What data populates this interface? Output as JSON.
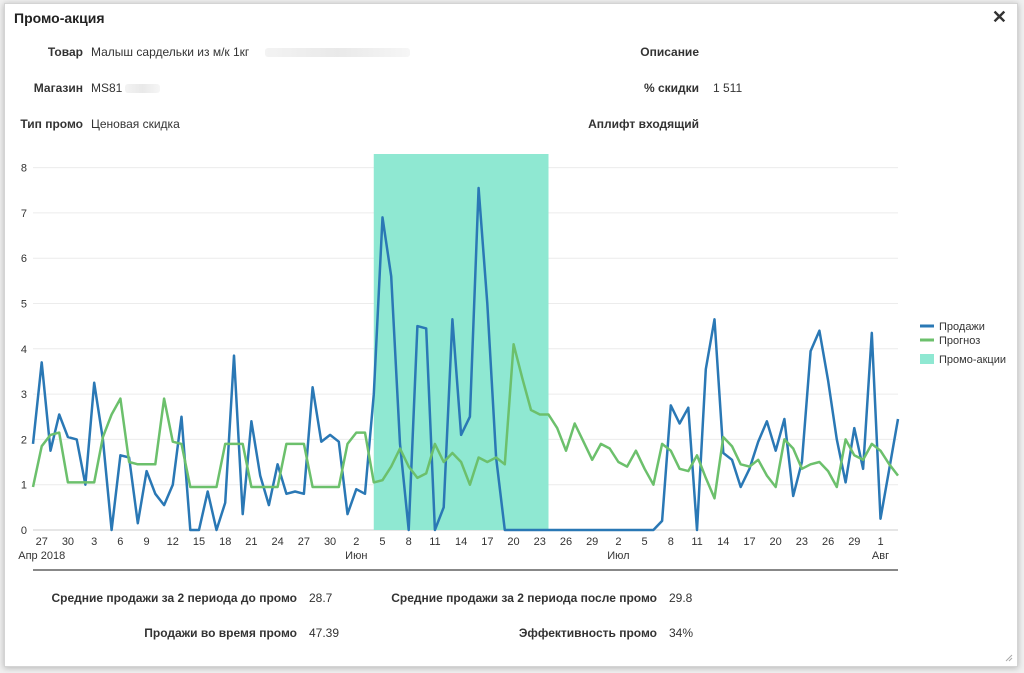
{
  "dialog": {
    "title": "Промо-акция",
    "close_icon": "close-icon"
  },
  "fields": {
    "product_label": "Товар",
    "product_value": "Малыш сардельки из м/к 1кг",
    "store_label": "Магазин",
    "store_value": "MS81",
    "promo_type_label": "Тип промо",
    "promo_type_value": "Ценовая скидка",
    "description_label": "Описание",
    "discount_label": "% скидки",
    "discount_value": "1 511",
    "uplift_label": "Аплифт входящий"
  },
  "summary": {
    "avg_before_label": "Средние продажи за 2 периода до промо",
    "avg_before_value": "28.7",
    "avg_after_label": "Средние продажи за 2 периода после промо",
    "avg_after_value": "29.8",
    "during_label": "Продажи во время промо",
    "during_value": "47.39",
    "efficiency_label": "Эффективность промо",
    "efficiency_value": "34%"
  },
  "colors": {
    "sales": "#2a78b5",
    "forecast": "#6cc06c",
    "promo": "#8fe8d2"
  },
  "chart_data": {
    "type": "line",
    "ylim": [
      0,
      8.3
    ],
    "yticks": [
      0,
      1,
      2,
      3,
      4,
      5,
      6,
      7,
      8
    ],
    "x_start": "2018-04-26",
    "x_end": "2018-08-03",
    "xticks": [
      {
        "date": "2018-04-27",
        "label": "27",
        "sub": "Апр 2018"
      },
      {
        "date": "2018-04-30",
        "label": "30"
      },
      {
        "date": "2018-05-03",
        "label": "3"
      },
      {
        "date": "2018-05-06",
        "label": "6"
      },
      {
        "date": "2018-05-09",
        "label": "9"
      },
      {
        "date": "2018-05-12",
        "label": "12"
      },
      {
        "date": "2018-05-15",
        "label": "15"
      },
      {
        "date": "2018-05-18",
        "label": "18"
      },
      {
        "date": "2018-05-21",
        "label": "21"
      },
      {
        "date": "2018-05-24",
        "label": "24"
      },
      {
        "date": "2018-05-27",
        "label": "27"
      },
      {
        "date": "2018-05-30",
        "label": "30"
      },
      {
        "date": "2018-06-02",
        "label": "2",
        "sub": "Июн"
      },
      {
        "date": "2018-06-05",
        "label": "5"
      },
      {
        "date": "2018-06-08",
        "label": "8"
      },
      {
        "date": "2018-06-11",
        "label": "11"
      },
      {
        "date": "2018-06-14",
        "label": "14"
      },
      {
        "date": "2018-06-17",
        "label": "17"
      },
      {
        "date": "2018-06-20",
        "label": "20"
      },
      {
        "date": "2018-06-23",
        "label": "23"
      },
      {
        "date": "2018-06-26",
        "label": "26"
      },
      {
        "date": "2018-06-29",
        "label": "29"
      },
      {
        "date": "2018-07-02",
        "label": "2",
        "sub": "Июл"
      },
      {
        "date": "2018-07-05",
        "label": "5"
      },
      {
        "date": "2018-07-08",
        "label": "8"
      },
      {
        "date": "2018-07-11",
        "label": "11"
      },
      {
        "date": "2018-07-14",
        "label": "14"
      },
      {
        "date": "2018-07-17",
        "label": "17"
      },
      {
        "date": "2018-07-20",
        "label": "20"
      },
      {
        "date": "2018-07-23",
        "label": "23"
      },
      {
        "date": "2018-07-26",
        "label": "26"
      },
      {
        "date": "2018-07-29",
        "label": "29"
      },
      {
        "date": "2018-08-01",
        "label": "1",
        "sub": "Авг"
      }
    ],
    "promo_period": [
      "2018-06-04",
      "2018-06-24"
    ],
    "legend": {
      "placement": "right"
    },
    "series": [
      {
        "name": "Продажи",
        "color": "#2a78b5",
        "points": [
          [
            "2018-04-26",
            1.9
          ],
          [
            "2018-04-27",
            3.7
          ],
          [
            "2018-04-28",
            1.75
          ],
          [
            "2018-04-29",
            2.55
          ],
          [
            "2018-04-30",
            2.05
          ],
          [
            "2018-05-01",
            2.0
          ],
          [
            "2018-05-02",
            1.0
          ],
          [
            "2018-05-03",
            3.25
          ],
          [
            "2018-05-04",
            2.0
          ],
          [
            "2018-05-05",
            0.0
          ],
          [
            "2018-05-06",
            1.65
          ],
          [
            "2018-05-07",
            1.6
          ],
          [
            "2018-05-08",
            0.15
          ],
          [
            "2018-05-09",
            1.3
          ],
          [
            "2018-05-10",
            0.8
          ],
          [
            "2018-05-11",
            0.55
          ],
          [
            "2018-05-12",
            1.0
          ],
          [
            "2018-05-13",
            2.5
          ],
          [
            "2018-05-14",
            0.0
          ],
          [
            "2018-05-15",
            0.0
          ],
          [
            "2018-05-16",
            0.85
          ],
          [
            "2018-05-17",
            0.0
          ],
          [
            "2018-05-18",
            0.6
          ],
          [
            "2018-05-19",
            3.85
          ],
          [
            "2018-05-20",
            0.35
          ],
          [
            "2018-05-21",
            2.4
          ],
          [
            "2018-05-22",
            1.2
          ],
          [
            "2018-05-23",
            0.55
          ],
          [
            "2018-05-24",
            1.45
          ],
          [
            "2018-05-25",
            0.8
          ],
          [
            "2018-05-26",
            0.85
          ],
          [
            "2018-05-27",
            0.8
          ],
          [
            "2018-05-28",
            3.15
          ],
          [
            "2018-05-29",
            1.95
          ],
          [
            "2018-05-30",
            2.1
          ],
          [
            "2018-05-31",
            1.95
          ],
          [
            "2018-06-01",
            0.35
          ],
          [
            "2018-06-02",
            0.9
          ],
          [
            "2018-06-03",
            0.8
          ],
          [
            "2018-06-04",
            3.0
          ],
          [
            "2018-06-05",
            6.9
          ],
          [
            "2018-06-06",
            5.6
          ],
          [
            "2018-06-07",
            1.9
          ],
          [
            "2018-06-08",
            0.0
          ],
          [
            "2018-06-09",
            4.5
          ],
          [
            "2018-06-10",
            4.45
          ],
          [
            "2018-06-11",
            0.0
          ],
          [
            "2018-06-12",
            0.5
          ],
          [
            "2018-06-13",
            4.65
          ],
          [
            "2018-06-14",
            2.1
          ],
          [
            "2018-06-15",
            2.5
          ],
          [
            "2018-06-16",
            7.55
          ],
          [
            "2018-06-17",
            5.0
          ],
          [
            "2018-06-18",
            1.6
          ],
          [
            "2018-06-19",
            0.0
          ],
          [
            "2018-06-20",
            0.0
          ],
          [
            "2018-06-21",
            0.0
          ],
          [
            "2018-06-22",
            0.0
          ],
          [
            "2018-06-23",
            0.0
          ],
          [
            "2018-06-24",
            0.0
          ],
          [
            "2018-06-25",
            0.0
          ],
          [
            "2018-06-26",
            0.0
          ],
          [
            "2018-06-27",
            0.0
          ],
          [
            "2018-06-28",
            0.0
          ],
          [
            "2018-06-29",
            0.0
          ],
          [
            "2018-06-30",
            0.0
          ],
          [
            "2018-07-01",
            0.0
          ],
          [
            "2018-07-02",
            0.0
          ],
          [
            "2018-07-03",
            0.0
          ],
          [
            "2018-07-04",
            0.0
          ],
          [
            "2018-07-05",
            0.0
          ],
          [
            "2018-07-06",
            0.0
          ],
          [
            "2018-07-07",
            0.2
          ],
          [
            "2018-07-08",
            2.75
          ],
          [
            "2018-07-09",
            2.35
          ],
          [
            "2018-07-10",
            2.7
          ],
          [
            "2018-07-11",
            0.0
          ],
          [
            "2018-07-12",
            3.55
          ],
          [
            "2018-07-13",
            4.65
          ],
          [
            "2018-07-14",
            1.7
          ],
          [
            "2018-07-15",
            1.55
          ],
          [
            "2018-07-16",
            0.95
          ],
          [
            "2018-07-17",
            1.35
          ],
          [
            "2018-07-18",
            1.95
          ],
          [
            "2018-07-19",
            2.4
          ],
          [
            "2018-07-20",
            1.75
          ],
          [
            "2018-07-21",
            2.45
          ],
          [
            "2018-07-22",
            0.75
          ],
          [
            "2018-07-23",
            1.5
          ],
          [
            "2018-07-24",
            3.95
          ],
          [
            "2018-07-25",
            4.4
          ],
          [
            "2018-07-26",
            3.3
          ],
          [
            "2018-07-27",
            2.0
          ],
          [
            "2018-07-28",
            1.05
          ],
          [
            "2018-07-29",
            2.25
          ],
          [
            "2018-07-30",
            1.35
          ],
          [
            "2018-07-31",
            4.35
          ],
          [
            "2018-08-01",
            0.25
          ],
          [
            "2018-08-02",
            1.35
          ],
          [
            "2018-08-03",
            2.45
          ]
        ]
      },
      {
        "name": "Прогноз",
        "color": "#6cc06c",
        "points": [
          [
            "2018-04-26",
            0.95
          ],
          [
            "2018-04-27",
            1.85
          ],
          [
            "2018-04-28",
            2.1
          ],
          [
            "2018-04-29",
            2.15
          ],
          [
            "2018-04-30",
            1.05
          ],
          [
            "2018-05-01",
            1.05
          ],
          [
            "2018-05-02",
            1.05
          ],
          [
            "2018-05-03",
            1.05
          ],
          [
            "2018-05-04",
            2.05
          ],
          [
            "2018-05-05",
            2.55
          ],
          [
            "2018-05-06",
            2.9
          ],
          [
            "2018-05-07",
            1.5
          ],
          [
            "2018-05-08",
            1.45
          ],
          [
            "2018-05-09",
            1.45
          ],
          [
            "2018-05-10",
            1.45
          ],
          [
            "2018-05-11",
            2.9
          ],
          [
            "2018-05-12",
            1.95
          ],
          [
            "2018-05-13",
            1.9
          ],
          [
            "2018-05-14",
            0.95
          ],
          [
            "2018-05-15",
            0.95
          ],
          [
            "2018-05-16",
            0.95
          ],
          [
            "2018-05-17",
            0.95
          ],
          [
            "2018-05-18",
            1.9
          ],
          [
            "2018-05-19",
            1.9
          ],
          [
            "2018-05-20",
            1.9
          ],
          [
            "2018-05-21",
            0.95
          ],
          [
            "2018-05-22",
            0.95
          ],
          [
            "2018-05-23",
            0.95
          ],
          [
            "2018-05-24",
            0.95
          ],
          [
            "2018-05-25",
            1.9
          ],
          [
            "2018-05-26",
            1.9
          ],
          [
            "2018-05-27",
            1.9
          ],
          [
            "2018-05-28",
            0.95
          ],
          [
            "2018-05-29",
            0.95
          ],
          [
            "2018-05-30",
            0.95
          ],
          [
            "2018-05-31",
            0.95
          ],
          [
            "2018-06-01",
            1.9
          ],
          [
            "2018-06-02",
            2.15
          ],
          [
            "2018-06-03",
            2.15
          ],
          [
            "2018-06-04",
            1.05
          ],
          [
            "2018-06-05",
            1.1
          ],
          [
            "2018-06-06",
            1.4
          ],
          [
            "2018-06-07",
            1.8
          ],
          [
            "2018-06-08",
            1.4
          ],
          [
            "2018-06-09",
            1.15
          ],
          [
            "2018-06-10",
            1.25
          ],
          [
            "2018-06-11",
            1.9
          ],
          [
            "2018-06-12",
            1.5
          ],
          [
            "2018-06-13",
            1.7
          ],
          [
            "2018-06-14",
            1.5
          ],
          [
            "2018-06-15",
            1.0
          ],
          [
            "2018-06-16",
            1.6
          ],
          [
            "2018-06-17",
            1.5
          ],
          [
            "2018-06-18",
            1.6
          ],
          [
            "2018-06-19",
            1.45
          ],
          [
            "2018-06-20",
            4.1
          ],
          [
            "2018-06-21",
            3.35
          ],
          [
            "2018-06-22",
            2.65
          ],
          [
            "2018-06-23",
            2.55
          ],
          [
            "2018-06-24",
            2.55
          ],
          [
            "2018-06-25",
            2.25
          ],
          [
            "2018-06-26",
            1.75
          ],
          [
            "2018-06-27",
            2.35
          ],
          [
            "2018-06-28",
            1.95
          ],
          [
            "2018-06-29",
            1.55
          ],
          [
            "2018-06-30",
            1.9
          ],
          [
            "2018-07-01",
            1.8
          ],
          [
            "2018-07-02",
            1.5
          ],
          [
            "2018-07-03",
            1.4
          ],
          [
            "2018-07-04",
            1.75
          ],
          [
            "2018-07-05",
            1.35
          ],
          [
            "2018-07-06",
            1.0
          ],
          [
            "2018-07-07",
            1.9
          ],
          [
            "2018-07-08",
            1.75
          ],
          [
            "2018-07-09",
            1.35
          ],
          [
            "2018-07-10",
            1.3
          ],
          [
            "2018-07-11",
            1.65
          ],
          [
            "2018-07-12",
            1.15
          ],
          [
            "2018-07-13",
            0.7
          ],
          [
            "2018-07-14",
            2.05
          ],
          [
            "2018-07-15",
            1.85
          ],
          [
            "2018-07-16",
            1.45
          ],
          [
            "2018-07-17",
            1.4
          ],
          [
            "2018-07-18",
            1.55
          ],
          [
            "2018-07-19",
            1.2
          ],
          [
            "2018-07-20",
            0.95
          ],
          [
            "2018-07-21",
            2.0
          ],
          [
            "2018-07-22",
            1.8
          ],
          [
            "2018-07-23",
            1.35
          ],
          [
            "2018-07-24",
            1.45
          ],
          [
            "2018-07-25",
            1.5
          ],
          [
            "2018-07-26",
            1.3
          ],
          [
            "2018-07-27",
            0.95
          ],
          [
            "2018-07-28",
            2.0
          ],
          [
            "2018-07-29",
            1.65
          ],
          [
            "2018-07-30",
            1.55
          ],
          [
            "2018-07-31",
            1.9
          ],
          [
            "2018-08-01",
            1.75
          ],
          [
            "2018-08-02",
            1.45
          ],
          [
            "2018-08-03",
            1.2
          ]
        ]
      }
    ],
    "promo_legend_label": "Промо-акции"
  }
}
